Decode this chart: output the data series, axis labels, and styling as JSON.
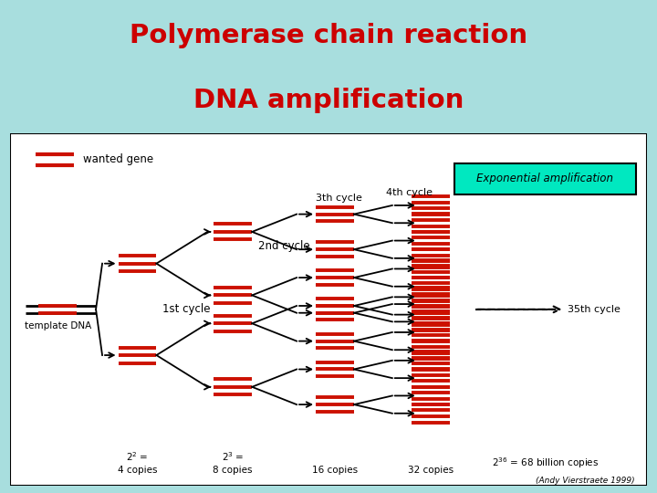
{
  "title_line1": "Polymerase chain reaction",
  "title_line2": "DNA amplification",
  "title_color": "#cc0000",
  "title_bg": "#a8dede",
  "diagram_bg": "#ffffff",
  "dna_color": "#cc1100",
  "arrow_color": "#000000",
  "box_fill": "#00e8c0",
  "box_text": "Exponential amplification",
  "legend_text": "wanted gene",
  "label_template": "template DNA",
  "label_1st": "1st cycle",
  "label_2nd": "2nd cycle",
  "label_3rd": "3th cycle",
  "label_4th": "4th cycle",
  "label_35th": "35th cycle",
  "credit": "(Andy Vierstraete 1999)"
}
